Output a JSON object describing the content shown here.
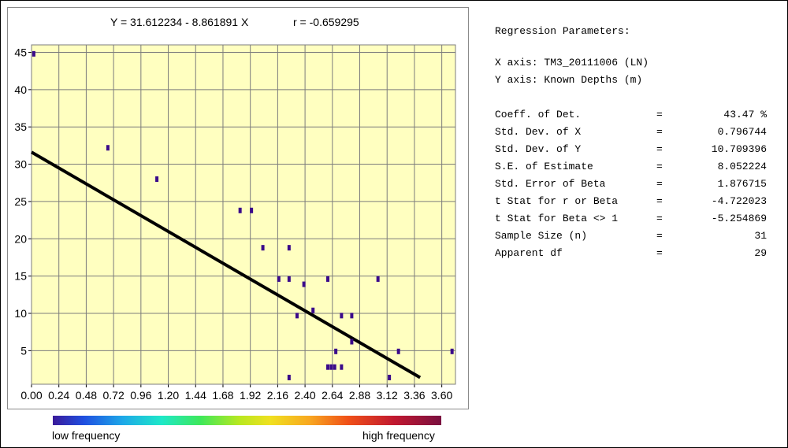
{
  "chart_data": {
    "type": "scatter",
    "title": "Y = 31.612234 - 8.861891 X",
    "r_text": "r = -0.659295",
    "xlim": [
      0,
      3.72
    ],
    "ylim": [
      0.5,
      46
    ],
    "x_ticks": [
      "0.00",
      "0.24",
      "0.48",
      "0.72",
      "0.96",
      "1.20",
      "1.44",
      "1.68",
      "1.92",
      "2.16",
      "2.40",
      "2.64",
      "2.88",
      "3.12",
      "3.36",
      "3.60"
    ],
    "x_tick_values": [
      0,
      0.24,
      0.48,
      0.72,
      0.96,
      1.2,
      1.44,
      1.68,
      1.92,
      2.16,
      2.4,
      2.64,
      2.88,
      3.12,
      3.36,
      3.6
    ],
    "y_ticks": [
      "5",
      "10",
      "15",
      "20",
      "25",
      "30",
      "35",
      "40",
      "45"
    ],
    "y_tick_values": [
      5,
      10,
      15,
      20,
      25,
      30,
      35,
      40,
      45
    ],
    "grid": true,
    "background": "#ffffc0",
    "point_color": "#3a0a8a",
    "line_color": "#000000",
    "regression": {
      "intercept": 31.612234,
      "slope": -8.861891,
      "x_range": [
        0,
        3.41
      ]
    },
    "points": [
      {
        "x": 0.02,
        "y": 44.8
      },
      {
        "x": 0.67,
        "y": 32.2
      },
      {
        "x": 1.1,
        "y": 28.0
      },
      {
        "x": 1.83,
        "y": 23.8
      },
      {
        "x": 1.93,
        "y": 23.8
      },
      {
        "x": 2.03,
        "y": 18.8
      },
      {
        "x": 2.17,
        "y": 14.6
      },
      {
        "x": 2.26,
        "y": 18.8
      },
      {
        "x": 2.26,
        "y": 14.6
      },
      {
        "x": 2.33,
        "y": 9.7
      },
      {
        "x": 2.39,
        "y": 13.9
      },
      {
        "x": 2.47,
        "y": 10.4
      },
      {
        "x": 2.6,
        "y": 14.6
      },
      {
        "x": 2.6,
        "y": 2.8
      },
      {
        "x": 2.63,
        "y": 2.8
      },
      {
        "x": 2.66,
        "y": 2.8
      },
      {
        "x": 2.67,
        "y": 4.9
      },
      {
        "x": 2.72,
        "y": 9.7
      },
      {
        "x": 2.72,
        "y": 2.8
      },
      {
        "x": 2.81,
        "y": 9.7
      },
      {
        "x": 2.81,
        "y": 6.2
      },
      {
        "x": 3.04,
        "y": 14.6
      },
      {
        "x": 3.14,
        "y": 1.4
      },
      {
        "x": 3.22,
        "y": 4.9
      },
      {
        "x": 3.69,
        "y": 4.9
      },
      {
        "x": 2.26,
        "y": 1.4
      }
    ],
    "legend": {
      "low_label": "low frequency",
      "high_label": "high frequency"
    }
  },
  "params": {
    "heading": "Regression Parameters:",
    "x_axis": "X axis: TM3_20111006 (LN)",
    "y_axis": "Y axis: Known Depths (m)",
    "stats": [
      {
        "label": "Coeff. of Det.",
        "value": "43.47 %"
      },
      {
        "label": "Std. Dev. of X",
        "value": "0.796744"
      },
      {
        "label": "Std. Dev. of Y",
        "value": "10.709396"
      },
      {
        "label": "S.E. of Estimate",
        "value": "8.052224"
      },
      {
        "label": "Std. Error of Beta",
        "value": "1.876715"
      },
      {
        "label": "t Stat for r or Beta",
        "value": "-4.722023"
      },
      {
        "label": "t Stat for Beta <> 1",
        "value": "-5.254869"
      },
      {
        "label": "Sample Size (n)",
        "value": "31"
      },
      {
        "label": "Apparent df",
        "value": "29"
      }
    ],
    "eq_sign": "="
  }
}
